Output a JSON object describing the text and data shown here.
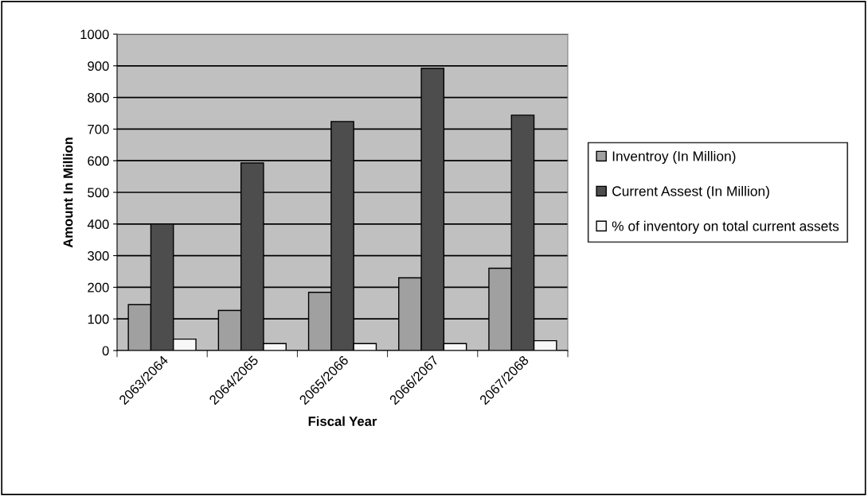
{
  "chart_data": {
    "type": "bar",
    "xlabel": "Fiscal Year",
    "ylabel": "Amount In Million",
    "categories": [
      "2063/2064",
      "2064/2065",
      "2065/2066",
      "2066/2067",
      "2067/2068"
    ],
    "series": [
      {
        "name": "Inventroy (In Million)",
        "color": "#a0a0a0",
        "values": [
          145,
          127,
          184,
          230,
          260
        ]
      },
      {
        "name": "Current Assest (In Million)",
        "color": "#4d4d4d",
        "values": [
          400,
          593,
          724,
          892,
          744
        ]
      },
      {
        "name": "% of inventory on total current assets",
        "color": "#f8f8f8",
        "values": [
          36,
          22,
          22,
          22,
          31
        ]
      }
    ],
    "ylim": [
      0,
      1000
    ],
    "yticks": [
      0,
      100,
      200,
      300,
      400,
      500,
      600,
      700,
      800,
      900,
      1000
    ],
    "grid": "y",
    "legend": "right"
  }
}
